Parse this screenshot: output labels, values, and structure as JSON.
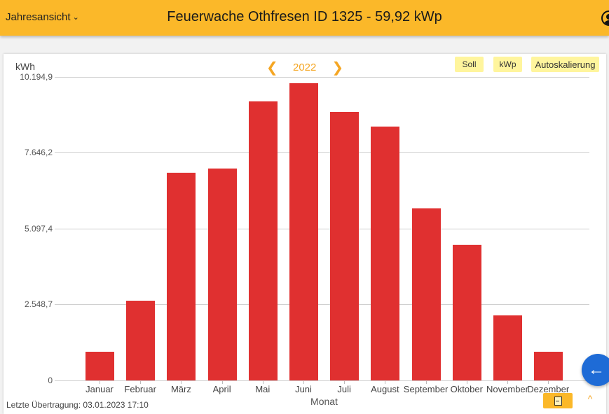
{
  "header": {
    "view_select": "Jahresansicht",
    "view_chevron": "⌄",
    "title": "Feuerwache Othfresen ID 1325 - 59,92 kWp"
  },
  "toolbar": {
    "prev_icon": "❮",
    "year": "2022",
    "next_icon": "❯",
    "soll_label": "Soll",
    "kwp_label": "kWp",
    "autoscale_label": "Autoskalierung"
  },
  "footer": {
    "last_transfer": "Letzte Übertragung: 03.01.2023 17:10",
    "up_icon": "^",
    "fab_icon": "←"
  },
  "colors": {
    "header_bg": "#fbb829",
    "bar": "#e03030",
    "accent": "#f5a623",
    "toggle_bg": "#fff59d",
    "fab": "#1e6bd6"
  },
  "chart_data": {
    "type": "bar",
    "title": "",
    "xlabel": "Monat",
    "ylabel": "kWh",
    "ylim": [
      0,
      10194.9
    ],
    "yticks": [
      "0",
      "2.548,7",
      "5.097,4",
      "7.646,2",
      "10.194,9"
    ],
    "grid": true,
    "categories": [
      "Januar",
      "Februar",
      "März",
      "April",
      "Mai",
      "Juni",
      "Juli",
      "August",
      "September",
      "Oktober",
      "November",
      "Dezember"
    ],
    "values": [
      963,
      2678,
      6977,
      7118,
      9373,
      9983,
      9020,
      8527,
      5779,
      4557,
      2185,
      963
    ]
  }
}
